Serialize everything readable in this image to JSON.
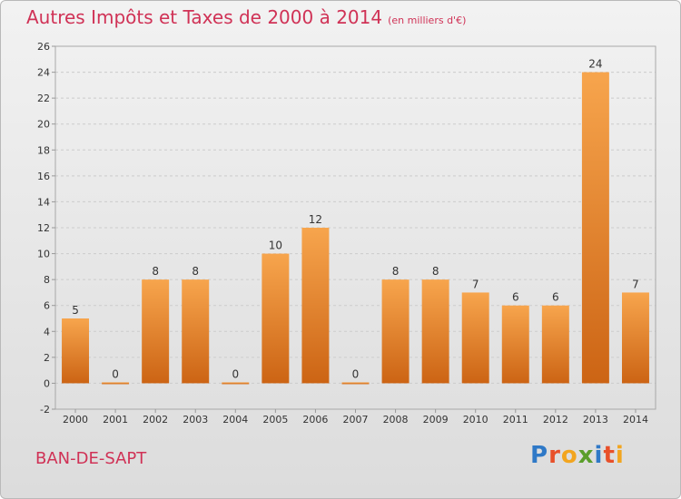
{
  "header": {
    "title": "Autres Impôts et Taxes de 2000 à 2014",
    "unit": "(en milliers d'€)"
  },
  "footer": {
    "commune": "BAN-DE-SAPT",
    "brand_letters": [
      "P",
      "r",
      "o",
      "x",
      "i",
      "t",
      "i"
    ]
  },
  "colors": {
    "title": "#d03256",
    "bar_top": "#f7a54d",
    "bar_bottom": "#cc6414",
    "grid": "#cccccc",
    "brand": [
      "#2f79c7",
      "#e8502a",
      "#f2a51f",
      "#5a9e2a",
      "#2f79c7",
      "#e8502a",
      "#f2a51f"
    ]
  },
  "chart_data": {
    "type": "bar",
    "title": "Autres Impôts et Taxes de 2000 à 2014",
    "subtitle": "(en milliers d'€)",
    "xlabel": "",
    "ylabel": "",
    "categories": [
      "2000",
      "2001",
      "2002",
      "2003",
      "2004",
      "2005",
      "2006",
      "2007",
      "2008",
      "2009",
      "2010",
      "2011",
      "2012",
      "2013",
      "2014"
    ],
    "values": [
      5,
      0,
      8,
      8,
      0,
      10,
      12,
      0,
      8,
      8,
      7,
      6,
      6,
      24,
      7
    ],
    "ylim": [
      -2,
      26
    ],
    "yticks": [
      -2,
      0,
      2,
      4,
      6,
      8,
      10,
      12,
      14,
      16,
      18,
      20,
      22,
      24,
      26
    ],
    "grid": true,
    "legend": "none"
  }
}
